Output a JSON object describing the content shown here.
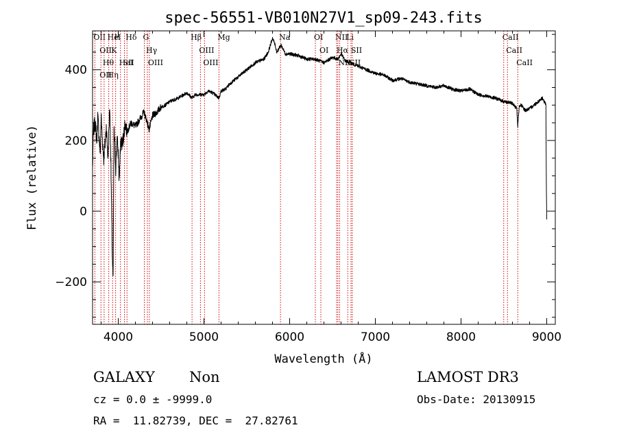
{
  "chart_data": {
    "type": "line",
    "title": "spec-56551-VB010N27V1_sp09-243.fits",
    "xlabel": "Wavelength (Å)",
    "ylabel": "Flux (relative)",
    "xlim": [
      3700,
      9100
    ],
    "ylim": [
      -320,
      510
    ],
    "xticks": [
      4000,
      5000,
      6000,
      7000,
      8000,
      9000
    ],
    "yticks": [
      -200,
      0,
      200,
      400
    ],
    "grid": false,
    "spectrum_anchors": [
      [
        3700,
        120
      ],
      [
        3710,
        230
      ],
      [
        3730,
        250
      ],
      [
        3750,
        200
      ],
      [
        3760,
        270
      ],
      [
        3790,
        160
      ],
      [
        3800,
        270
      ],
      [
        3810,
        220
      ],
      [
        3830,
        150
      ],
      [
        3850,
        200
      ],
      [
        3860,
        240
      ],
      [
        3880,
        150
      ],
      [
        3900,
        300
      ],
      [
        3910,
        190
      ],
      [
        3930,
        -120
      ],
      [
        3940,
        -200
      ],
      [
        3950,
        230
      ],
      [
        3960,
        190
      ],
      [
        3970,
        120
      ],
      [
        3985,
        210
      ],
      [
        4000,
        160
      ],
      [
        4010,
        90
      ],
      [
        4030,
        200
      ],
      [
        4050,
        190
      ],
      [
        4080,
        250
      ],
      [
        4101,
        225
      ],
      [
        4150,
        250
      ],
      [
        4200,
        240
      ],
      [
        4250,
        260
      ],
      [
        4300,
        280
      ],
      [
        4340,
        250
      ],
      [
        4360,
        230
      ],
      [
        4380,
        250
      ],
      [
        4400,
        270
      ],
      [
        4450,
        280
      ],
      [
        4500,
        295
      ],
      [
        4550,
        300
      ],
      [
        4600,
        310
      ],
      [
        4700,
        320
      ],
      [
        4800,
        335
      ],
      [
        4861,
        320
      ],
      [
        4900,
        330
      ],
      [
        5000,
        330
      ],
      [
        5050,
        340
      ],
      [
        5100,
        335
      ],
      [
        5175,
        320
      ],
      [
        5200,
        340
      ],
      [
        5250,
        345
      ],
      [
        5300,
        360
      ],
      [
        5400,
        380
      ],
      [
        5500,
        400
      ],
      [
        5600,
        420
      ],
      [
        5700,
        430
      ],
      [
        5750,
        450
      ],
      [
        5800,
        490
      ],
      [
        5830,
        470
      ],
      [
        5850,
        450
      ],
      [
        5900,
        470
      ],
      [
        5950,
        445
      ],
      [
        6000,
        445
      ],
      [
        6100,
        440
      ],
      [
        6200,
        430
      ],
      [
        6300,
        430
      ],
      [
        6400,
        420
      ],
      [
        6500,
        435
      ],
      [
        6563,
        430
      ],
      [
        6600,
        445
      ],
      [
        6650,
        425
      ],
      [
        6700,
        420
      ],
      [
        6800,
        410
      ],
      [
        6900,
        400
      ],
      [
        7000,
        390
      ],
      [
        7100,
        385
      ],
      [
        7200,
        370
      ],
      [
        7300,
        375
      ],
      [
        7400,
        365
      ],
      [
        7500,
        360
      ],
      [
        7600,
        355
      ],
      [
        7700,
        350
      ],
      [
        7800,
        355
      ],
      [
        7900,
        345
      ],
      [
        8000,
        340
      ],
      [
        8100,
        345
      ],
      [
        8200,
        330
      ],
      [
        8300,
        325
      ],
      [
        8400,
        320
      ],
      [
        8500,
        310
      ],
      [
        8600,
        305
      ],
      [
        8650,
        290
      ],
      [
        8662,
        240
      ],
      [
        8680,
        300
      ],
      [
        8700,
        300
      ],
      [
        8750,
        285
      ],
      [
        8800,
        290
      ],
      [
        8850,
        300
      ],
      [
        8900,
        310
      ],
      [
        8950,
        320
      ],
      [
        8990,
        300
      ],
      [
        8995,
        80
      ],
      [
        9000,
        -20
      ]
    ],
    "lines": [
      {
        "wave": 3727,
        "labels": [
          "OII"
        ]
      },
      {
        "wave": 3798,
        "labels": [
          "OII",
          "OII"
        ]
      },
      {
        "wave": 3835,
        "labels": [
          "Hθ"
        ]
      },
      {
        "wave": 3889,
        "labels": [
          "He",
          "Hη"
        ]
      },
      {
        "wave": 3934,
        "labels": [
          "K"
        ]
      },
      {
        "wave": 3969,
        "labels": [
          "H"
        ]
      },
      {
        "wave": 4026,
        "labels": [
          "HeI"
        ]
      },
      {
        "wave": 4072,
        "labels": [
          "SII"
        ]
      },
      {
        "wave": 4102,
        "labels": [
          "Hδ"
        ]
      },
      {
        "wave": 4304,
        "labels": [
          "G"
        ]
      },
      {
        "wave": 4340,
        "labels": [
          "Hγ"
        ]
      },
      {
        "wave": 4363,
        "labels": [
          "OIII"
        ]
      },
      {
        "wave": 4861,
        "labels": [
          "Hβ"
        ]
      },
      {
        "wave": 4959,
        "labels": [
          "OIII"
        ]
      },
      {
        "wave": 5007,
        "labels": [
          "OIII"
        ]
      },
      {
        "wave": 5175,
        "labels": [
          "Mg"
        ]
      },
      {
        "wave": 5893,
        "labels": [
          "Na"
        ]
      },
      {
        "wave": 6300,
        "labels": [
          "OI"
        ]
      },
      {
        "wave": 6364,
        "labels": [
          "OI"
        ]
      },
      {
        "wave": 6548,
        "labels": [
          "NII"
        ]
      },
      {
        "wave": 6563,
        "labels": [
          "Hα"
        ]
      },
      {
        "wave": 6583,
        "labels": [
          "NII"
        ]
      },
      {
        "wave": 6678,
        "labels": [
          "Li"
        ]
      },
      {
        "wave": 6716,
        "labels": [
          "SII"
        ]
      },
      {
        "wave": 6731,
        "labels": [
          "SII"
        ]
      },
      {
        "wave": 8498,
        "labels": [
          "CaII"
        ]
      },
      {
        "wave": 8542,
        "labels": [
          "CaII"
        ]
      },
      {
        "wave": 8662,
        "labels": [
          "CaII"
        ]
      }
    ]
  },
  "info": {
    "class": "GALAXY",
    "subclass": "Non",
    "survey": "LAMOST DR3",
    "cz": "cz = 0.0 ± -9999.0",
    "obs_date": "Obs-Date: 20130915",
    "radec": "RA =  11.82739, DEC =  27.82761"
  },
  "colors": {
    "line_marker": "#cc0000",
    "spectrum": "#000000"
  }
}
